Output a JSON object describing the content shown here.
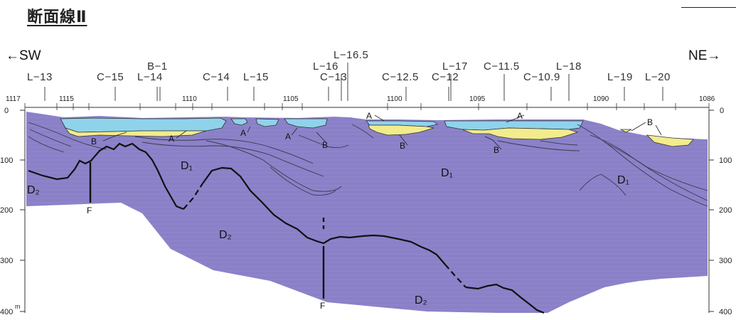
{
  "title": "断面線Ⅱ",
  "direction_left": "←SW",
  "direction_right": "NE→",
  "boreholes": [
    "L−13",
    "C−15",
    "L−14",
    "B−1",
    "C−14",
    "L−15",
    "L−16",
    "L−16.5",
    "C−13",
    "C−12.5",
    "C−12",
    "L−17",
    "C−11.5",
    "C−10.9",
    "L−18",
    "L−19",
    "L−20"
  ],
  "km_labels": [
    "1117",
    "1115",
    "1110",
    "1105",
    "1100",
    "1095",
    "1090",
    "1086"
  ],
  "depth_labels_left": [
    "0",
    "100",
    "200",
    "300",
    "400"
  ],
  "depth_labels_right": [
    "0",
    "100",
    "200",
    "300",
    "400"
  ],
  "depth_unit": "m",
  "unit_labels": {
    "A": "A",
    "B": "B",
    "D1": "D₁",
    "D2": "D₂",
    "F": "F"
  },
  "colors": {
    "unit_A": "#8fd3ea",
    "unit_B": "#f2ec8c",
    "unit_D": "#8a80c8",
    "line": "#1a1a1a"
  }
}
